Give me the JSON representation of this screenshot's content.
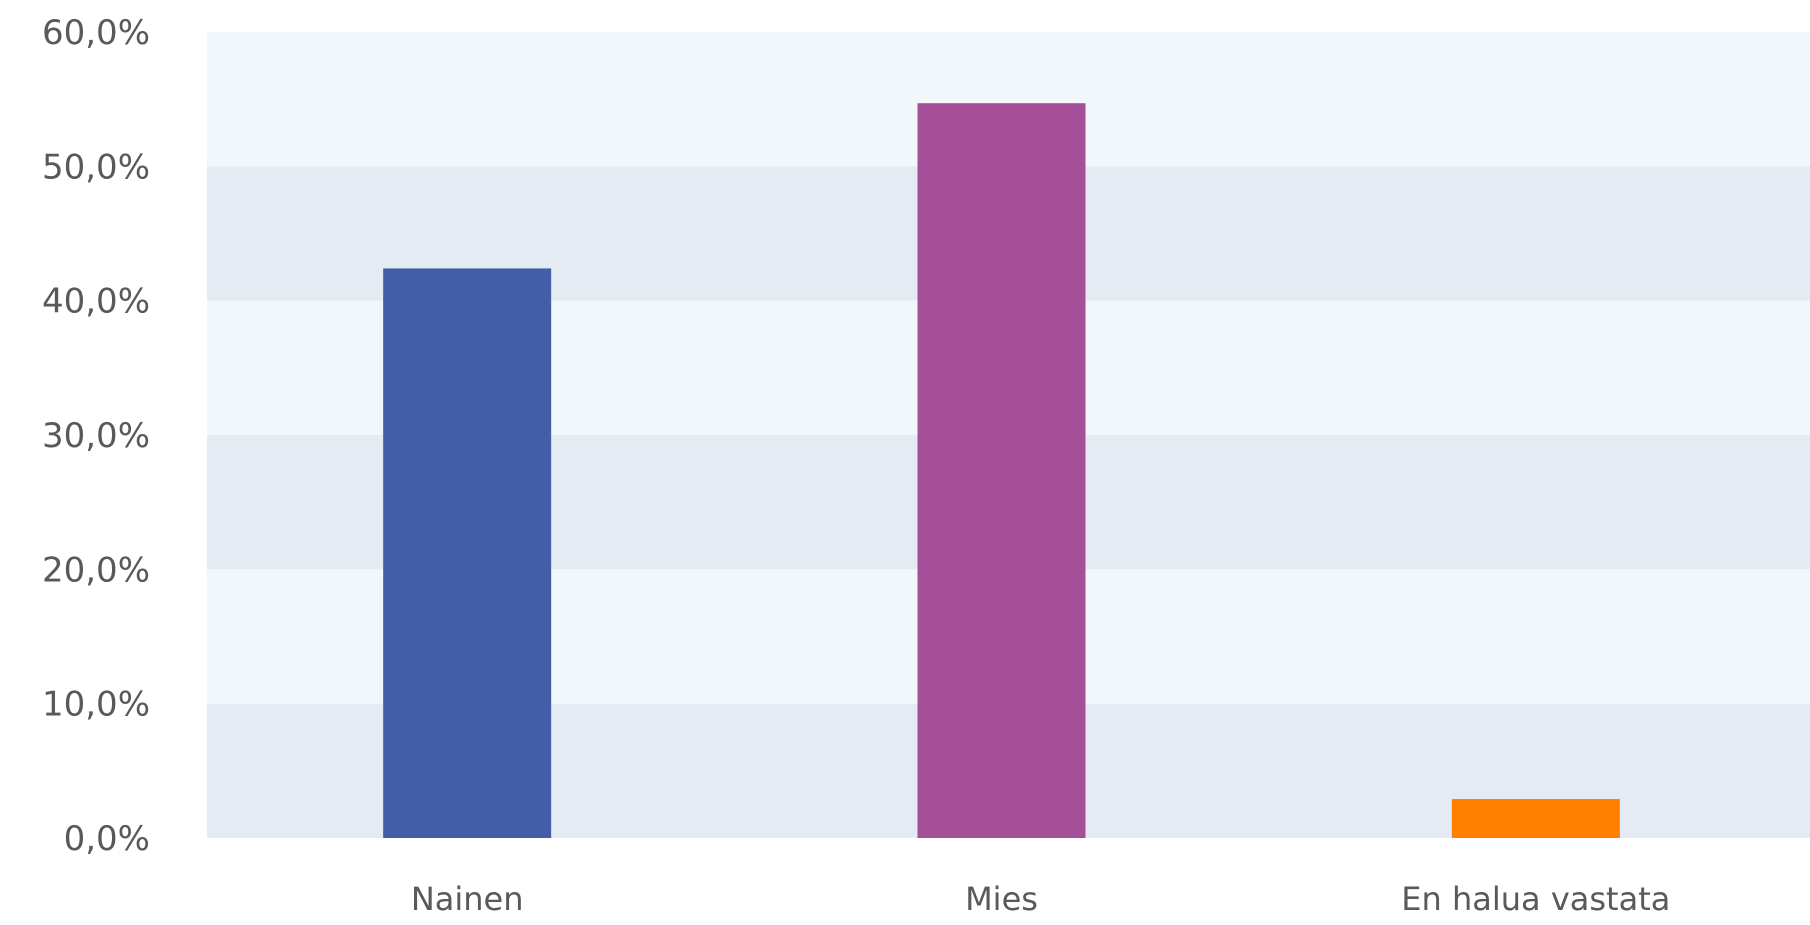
{
  "chart_data": {
    "type": "bar",
    "categories": [
      "Nainen",
      "Mies",
      "En halua vastata"
    ],
    "values": [
      42.4,
      54.7,
      2.9
    ],
    "colors": [
      "#445DA7",
      "#A54F98",
      "#FF7F00"
    ],
    "ylim": [
      0,
      60
    ],
    "yticks": [
      0,
      10,
      20,
      30,
      40,
      50,
      60
    ],
    "ytick_labels": [
      "0,0%",
      "10,0%",
      "20,0%",
      "30,0%",
      "40,0%",
      "50,0%",
      "60,0%"
    ],
    "band_colors": [
      "#E4EBF3",
      "#F2F7FB"
    ],
    "grid": false,
    "legend": "none",
    "title": "",
    "xlabel": "",
    "ylabel": ""
  }
}
